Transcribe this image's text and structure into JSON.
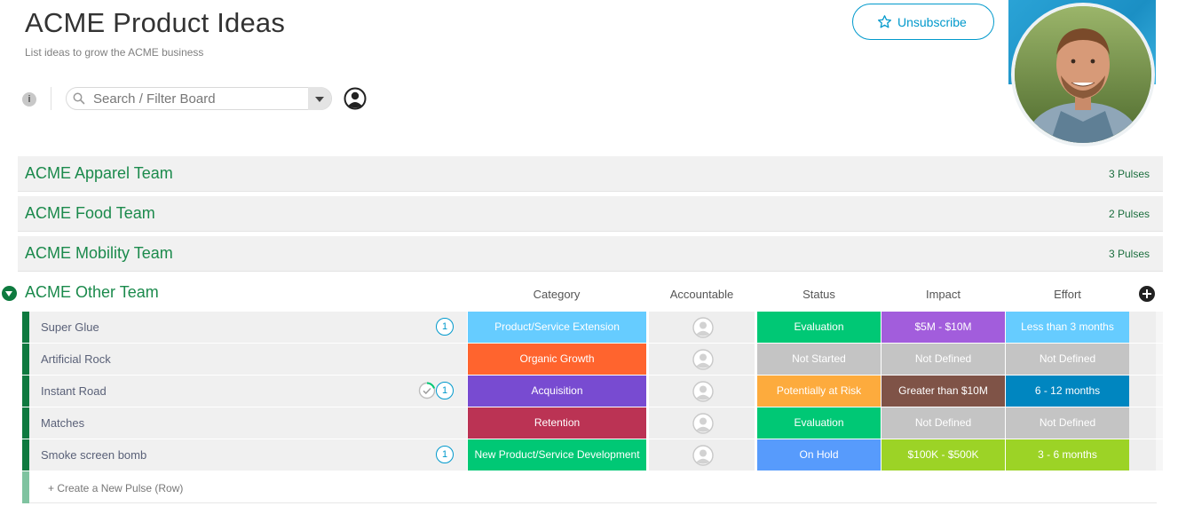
{
  "header": {
    "title": "ACME Product Ideas",
    "subtitle": "List ideas to grow the ACME business",
    "info_label": "i",
    "search": {
      "placeholder": "Search / Filter Board"
    },
    "unsubscribe_label": "Unsubscribe"
  },
  "groups_collapsed": [
    {
      "name": "ACME Apparel Team",
      "count": "3 Pulses"
    },
    {
      "name": "ACME Food Team",
      "count": "2 Pulses"
    },
    {
      "name": "ACME Mobility Team",
      "count": "3 Pulses"
    }
  ],
  "group_open": {
    "name": "ACME Other Team",
    "columns": [
      "Category",
      "Accountable",
      "Status",
      "Impact",
      "Effort"
    ],
    "rows": [
      {
        "name": "Super Glue",
        "updates": "1",
        "in_progress": false,
        "category": "Product/Service Extension",
        "status": "Evaluation",
        "impact": "$5M - $10M",
        "effort": "Less than 3 months"
      },
      {
        "name": "Artificial Rock",
        "updates": "",
        "in_progress": false,
        "category": "Organic Growth",
        "status": "Not Started",
        "impact": "Not Defined",
        "effort": "Not Defined"
      },
      {
        "name": "Instant Road",
        "updates": "1",
        "in_progress": true,
        "category": "Acquisition",
        "status": "Potentially at Risk",
        "impact": "Greater than $10M",
        "effort": "6 - 12 months"
      },
      {
        "name": "Matches",
        "updates": "",
        "in_progress": false,
        "category": "Retention",
        "status": "Evaluation",
        "impact": "Not Defined",
        "effort": "Not Defined"
      },
      {
        "name": "Smoke screen bomb",
        "updates": "1",
        "in_progress": false,
        "category": "New Product/Service Development",
        "status": "On Hold",
        "impact": "$100K - $500K",
        "effort": "3 - 6 months"
      }
    ],
    "create_row_label": "+ Create a New Pulse (Row)"
  },
  "colors": {
    "group_title": "#1b8a4c",
    "accent_blue": "#0099cc",
    "category": {
      "Product/Service Extension": "#66ccff",
      "Organic Growth": "#ff642e",
      "Acquisition": "#784bd1",
      "Retention": "#bb3354",
      "New Product/Service Development": "#00c875"
    },
    "status": {
      "Evaluation": "#00c875",
      "Not Started": "#c4c4c4",
      "Potentially at Risk": "#fdab3d",
      "On Hold": "#579bfc"
    },
    "impact": {
      "$5M - $10M": "#a25ddc",
      "Not Defined": "#c4c4c4",
      "Greater than $10M": "#7f5347",
      "$100K - $500K": "#9cd326"
    },
    "effort": {
      "Less than 3 months": "#66ccff",
      "Not Defined": "#c4c4c4",
      "6 - 12 months": "#0086c0",
      "3 - 6 months": "#9cd326"
    }
  }
}
